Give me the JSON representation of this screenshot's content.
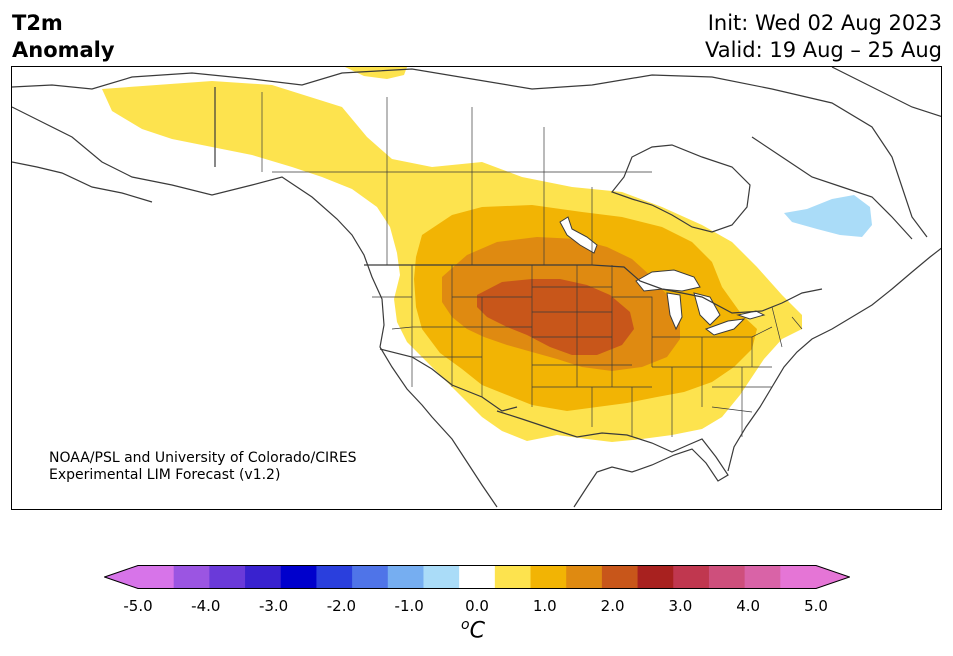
{
  "header": {
    "variable": "T2m",
    "field": "Anomaly",
    "init_label": "Init: Wed 02 Aug 2023",
    "valid_label": "Valid: 19 Aug – 25 Aug"
  },
  "credit": {
    "line1": "NOAA/PSL and University of Colorado/CIRES",
    "line2": "Experimental LIM Forecast (v1.2)"
  },
  "colorbar": {
    "unit_symbol": "C",
    "unit_prefix": "o",
    "ticks": [
      "-5.0",
      "-4.0",
      "-3.0",
      "-2.0",
      "-1.0",
      "0.0",
      "1.0",
      "2.0",
      "3.0",
      "4.0",
      "5.0"
    ],
    "bins": [
      {
        "range": "<-5.0",
        "color": "#d774e9"
      },
      {
        "range": "-5.0 to -4.5",
        "color": "#d774e9"
      },
      {
        "range": "-4.5 to -4.0",
        "color": "#9b55e2"
      },
      {
        "range": "-4.0 to -3.5",
        "color": "#6a3ad9"
      },
      {
        "range": "-3.5 to -3.0",
        "color": "#3922cf"
      },
      {
        "range": "-3.0 to -2.5",
        "color": "#0000cc"
      },
      {
        "range": "-2.5 to -2.0",
        "color": "#2a3fdd"
      },
      {
        "range": "-2.0 to -1.5",
        "color": "#4f74e8"
      },
      {
        "range": "-1.5 to -1.0",
        "color": "#76aef1"
      },
      {
        "range": "-1.0 to -0.5",
        "color": "#aadcf8"
      },
      {
        "range": "-0.5 to 0.5",
        "color": "#ffffff"
      },
      {
        "range": "0.5 to 1.0",
        "color": "#fde34e"
      },
      {
        "range": "1.0 to 1.5",
        "color": "#f2b404"
      },
      {
        "range": "1.5 to 2.0",
        "color": "#df8a11"
      },
      {
        "range": "2.0 to 2.5",
        "color": "#c8561a"
      },
      {
        "range": "2.5 to 3.0",
        "color": "#a8211f"
      },
      {
        "range": "3.0 to 3.5",
        "color": "#c0374f"
      },
      {
        "range": "3.5 to 4.0",
        "color": "#ce4f7c"
      },
      {
        "range": "4.0 to 4.5",
        "color": "#d963a7"
      },
      {
        "range": "4.5 to 5.0",
        "color": "#e575d6"
      },
      {
        "range": ">5.0",
        "color": "#e575d6"
      }
    ]
  },
  "map": {
    "region": "North America",
    "colors": {
      "anom_1": "#fde34e",
      "anom_1_5": "#f2b404",
      "anom_2": "#df8a11",
      "anom_2_5": "#c8561a",
      "anom_neg_1": "#aadcf8",
      "coast": "#3a3a3a"
    }
  }
}
